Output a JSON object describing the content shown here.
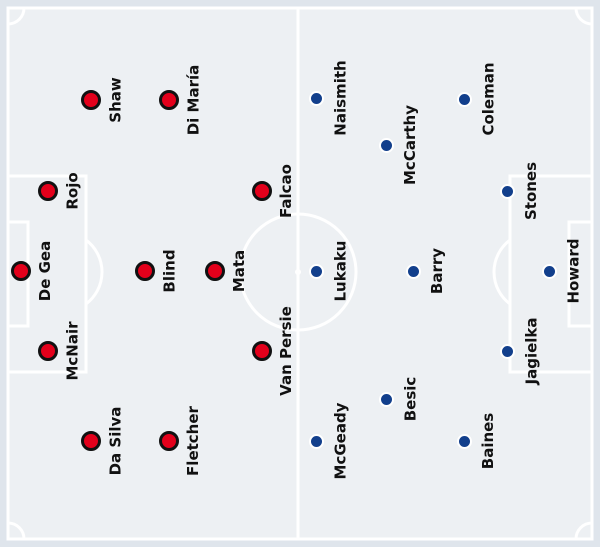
{
  "colors": {
    "field": "#edf0f3",
    "border": "#dfe5ec",
    "lines": "#ffffff",
    "home": "#e3001b",
    "away": "#123f8c"
  },
  "home_team": {
    "players": [
      {
        "name": "De Gea"
      },
      {
        "name": "McNair"
      },
      {
        "name": "Rojo"
      },
      {
        "name": "Shaw"
      },
      {
        "name": "Da Silva"
      },
      {
        "name": "Blind"
      },
      {
        "name": "Di María"
      },
      {
        "name": "Fletcher"
      },
      {
        "name": "Mata"
      },
      {
        "name": "Falcao"
      },
      {
        "name": "Van Persie"
      }
    ]
  },
  "away_team": {
    "players": [
      {
        "name": "Howard"
      },
      {
        "name": "Stones"
      },
      {
        "name": "Jagielka"
      },
      {
        "name": "Coleman"
      },
      {
        "name": "Baines"
      },
      {
        "name": "Barry"
      },
      {
        "name": "McCarthy"
      },
      {
        "name": "Besic"
      },
      {
        "name": "Naismith"
      },
      {
        "name": "McGeady"
      },
      {
        "name": "Lukaku"
      }
    ]
  }
}
